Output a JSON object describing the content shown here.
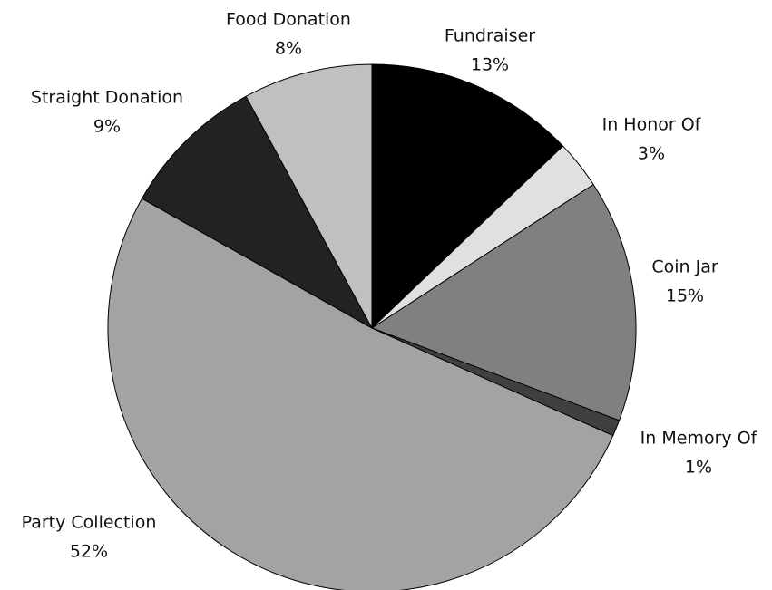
{
  "chart_data": {
    "type": "pie",
    "categories": [
      "Fundraiser",
      "In Honor Of",
      "Coin Jar",
      "In Memory Of",
      "Party Collection",
      "Straight Donation",
      "Food Donation"
    ],
    "values": [
      13,
      3,
      15,
      1,
      52,
      9,
      8
    ],
    "value_labels": [
      "13%",
      "3%",
      "15%",
      "1%",
      "52%",
      "9%",
      "8%"
    ],
    "colors": [
      "#000000",
      "#e0e0e0",
      "#808080",
      "#404040",
      "#a3a3a3",
      "#222222",
      "#c0c0c0"
    ]
  }
}
